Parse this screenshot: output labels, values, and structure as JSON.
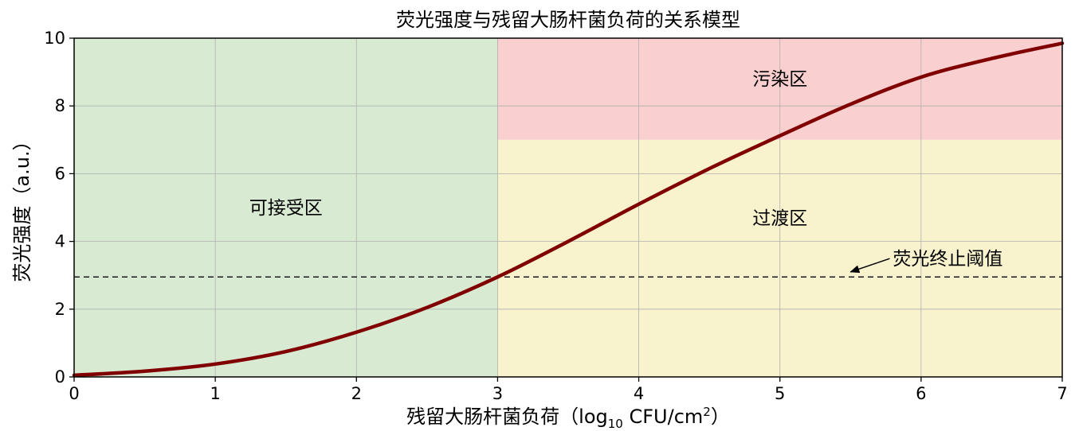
{
  "chart_data": {
    "type": "line",
    "title": "荧光强度与残留大肠杆菌负荷的关系模型",
    "xlabel": {
      "prefix": "残留大肠杆菌负荷（log",
      "sub": "10",
      "middle": " CFU/cm",
      "sup": "2",
      "suffix": "）"
    },
    "ylabel": "荧光强度（a.u.）",
    "xlim": [
      0,
      7
    ],
    "ylim": [
      0,
      10
    ],
    "xticks": [
      0,
      1,
      2,
      3,
      4,
      5,
      6,
      7
    ],
    "yticks": [
      0,
      2,
      4,
      6,
      8,
      10
    ],
    "grid": true,
    "series": [
      {
        "color": "#800000",
        "x": [
          0,
          0.5,
          1,
          1.5,
          2,
          2.5,
          3,
          3.5,
          4,
          4.5,
          5,
          5.5,
          6,
          6.5,
          7
        ],
        "y": [
          0.05,
          0.17,
          0.38,
          0.75,
          1.32,
          2.05,
          2.95,
          4.0,
          5.1,
          6.15,
          7.12,
          8.05,
          8.85,
          9.4,
          9.85
        ]
      }
    ],
    "regions": [
      {
        "label": "可接受区",
        "x": [
          0,
          3
        ],
        "y": [
          0,
          10
        ],
        "color": "#d9ead3",
        "label_at": [
          1.5,
          5
        ]
      },
      {
        "label": "过渡区",
        "x": [
          3,
          7
        ],
        "y": [
          0,
          7
        ],
        "color": "#f8f3cc",
        "label_at": [
          5,
          4.7
        ]
      },
      {
        "label": "污染区",
        "x": [
          3,
          7
        ],
        "y": [
          7,
          10
        ],
        "color": "#f9cfcf",
        "label_at": [
          5,
          8.8
        ]
      }
    ],
    "threshold": {
      "y": 2.95,
      "color": "#000000",
      "style": "dashed"
    },
    "annotation": {
      "text": "荧光终止阈值",
      "xytext": [
        5.8,
        3.4
      ],
      "xy": [
        5.5,
        3.1
      ]
    }
  }
}
